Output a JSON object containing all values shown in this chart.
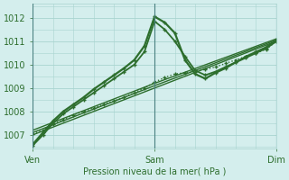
{
  "bg_color": "#d4eeed",
  "grid_color": "#a8d4d0",
  "line_color": "#2d6e2d",
  "xlabel": "Pression niveau de la mer( hPa )",
  "xtick_labels": [
    "Ven",
    "Sam",
    "Dim"
  ],
  "xtick_positions": [
    0,
    12,
    24
  ],
  "ylim": [
    1006.4,
    1012.6
  ],
  "yticks": [
    1007,
    1008,
    1009,
    1010,
    1011,
    1012
  ],
  "xlim": [
    0,
    24
  ],
  "series": [
    {
      "x": [
        0,
        12,
        24
      ],
      "y": [
        1007.0,
        1009.0,
        1011.0
      ],
      "marker": null,
      "linestyle": "-",
      "linewidth": 1.0
    },
    {
      "x": [
        0,
        12,
        24
      ],
      "y": [
        1007.1,
        1009.1,
        1011.05
      ],
      "marker": null,
      "linestyle": "-",
      "linewidth": 1.0
    },
    {
      "x": [
        0,
        12,
        24
      ],
      "y": [
        1007.2,
        1009.2,
        1011.1
      ],
      "marker": null,
      "linestyle": "-",
      "linewidth": 1.0
    },
    {
      "x": [
        0,
        1,
        2,
        3,
        4,
        5,
        6,
        7,
        8,
        9,
        10,
        11,
        12,
        13,
        14,
        15,
        16,
        17,
        18,
        19,
        20,
        21,
        22,
        23,
        24
      ],
      "y": [
        1007.05,
        1007.2,
        1007.45,
        1007.65,
        1007.85,
        1008.0,
        1008.15,
        1008.3,
        1008.45,
        1008.6,
        1008.8,
        1009.0,
        1009.25,
        1009.45,
        1009.6,
        1009.65,
        1009.7,
        1009.8,
        1009.9,
        1010.05,
        1010.2,
        1010.35,
        1010.5,
        1010.65,
        1011.0
      ],
      "marker": "+",
      "linestyle": "dotted",
      "linewidth": 1.0
    },
    {
      "x": [
        0,
        1,
        2,
        3,
        4,
        5,
        6,
        7,
        8,
        9,
        10,
        11,
        12,
        13,
        14,
        15,
        16,
        17,
        18,
        19,
        20,
        21,
        22,
        23,
        24
      ],
      "y": [
        1006.55,
        1007.0,
        1007.5,
        1007.9,
        1008.2,
        1008.5,
        1008.8,
        1009.1,
        1009.4,
        1009.7,
        1010.0,
        1010.55,
        1011.85,
        1011.5,
        1011.0,
        1010.35,
        1009.75,
        1009.55,
        1009.7,
        1009.9,
        1010.1,
        1010.35,
        1010.55,
        1010.75,
        1011.05
      ],
      "marker": "+",
      "linestyle": "-",
      "linewidth": 1.3
    },
    {
      "x": [
        0,
        1,
        2,
        3,
        4,
        5,
        6,
        7,
        8,
        9,
        10,
        11,
        12,
        13,
        14,
        15,
        16,
        17,
        18,
        19,
        20,
        21,
        22,
        23,
        24
      ],
      "y": [
        1006.6,
        1007.1,
        1007.6,
        1008.0,
        1008.3,
        1008.6,
        1008.95,
        1009.25,
        1009.55,
        1009.85,
        1010.2,
        1010.8,
        1012.05,
        1011.8,
        1011.35,
        1010.2,
        1009.6,
        1009.4,
        1009.65,
        1009.85,
        1010.1,
        1010.3,
        1010.5,
        1010.7,
        1011.0
      ],
      "marker": "+",
      "linestyle": "-",
      "linewidth": 1.6
    }
  ]
}
